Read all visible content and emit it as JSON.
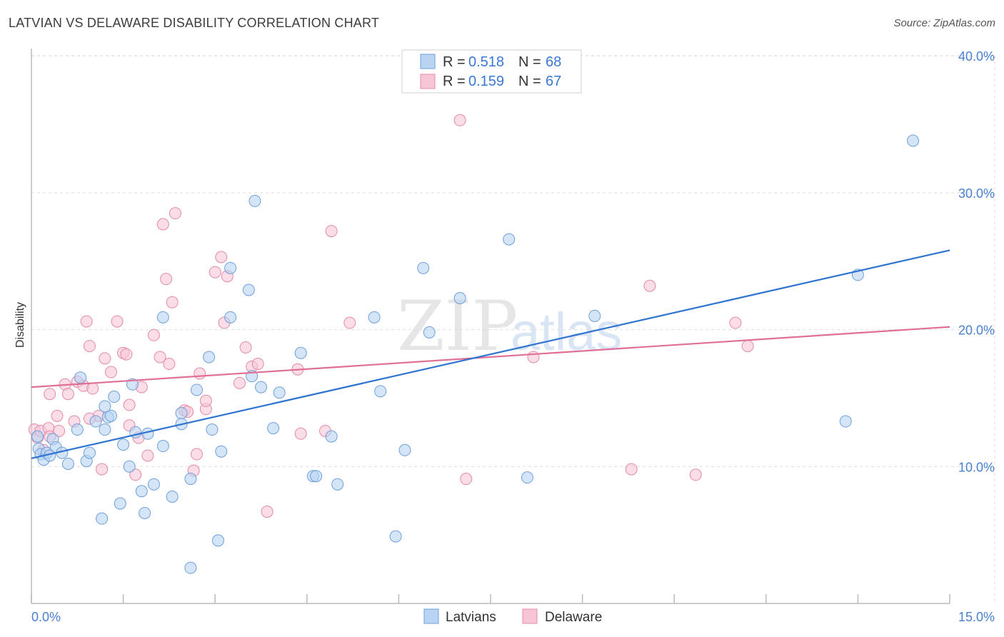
{
  "header": {
    "title": "LATVIAN VS DELAWARE DISABILITY CORRELATION CHART",
    "source": "Source: ZipAtlas.com"
  },
  "watermark": {
    "zip": "ZIP",
    "atlas": "atlas"
  },
  "legend": {
    "r_label": "R =",
    "n_label": "N =",
    "series": [
      {
        "r": "0.518",
        "n": "68"
      },
      {
        "r": "0.159",
        "n": "67"
      }
    ]
  },
  "colors": {
    "blue_fill": "#b9d3f3",
    "blue_stroke": "#6e9fdc",
    "blue_line": "#2f74d0",
    "pink_fill": "#f7c6d6",
    "pink_stroke": "#e48aa8",
    "pink_line": "#e07096",
    "tick_text": "#4a7fcf",
    "grid": "#dddddd"
  },
  "chart_data": {
    "type": "scatter",
    "title": "LATVIAN VS DELAWARE DISABILITY CORRELATION CHART",
    "xlabel": "",
    "ylabel": "Disability",
    "xlim": [
      0,
      15
    ],
    "ylim": [
      0,
      41
    ],
    "x_tick_labels": [
      "0.0%",
      "15.0%"
    ],
    "y_ticks": [
      10,
      20,
      30,
      40
    ],
    "y_tick_labels": [
      "10.0%",
      "20.0%",
      "30.0%",
      "40.0%"
    ],
    "legend_position": "top-center",
    "series": [
      {
        "name": "Latvians",
        "r": 0.518,
        "n": 68,
        "trend": {
          "x": [
            0,
            15
          ],
          "y": [
            10.6,
            25.8
          ]
        },
        "points": [
          [
            0.1,
            12.2
          ],
          [
            0.12,
            11.3
          ],
          [
            0.15,
            10.9
          ],
          [
            0.2,
            10.5
          ],
          [
            0.25,
            11.0
          ],
          [
            0.35,
            12.0
          ],
          [
            0.4,
            11.4
          ],
          [
            0.5,
            11.0
          ],
          [
            0.6,
            10.2
          ],
          [
            0.75,
            12.7
          ],
          [
            0.8,
            16.5
          ],
          [
            0.9,
            10.4
          ],
          [
            0.95,
            11.0
          ],
          [
            1.05,
            13.3
          ],
          [
            1.15,
            6.2
          ],
          [
            1.2,
            12.7
          ],
          [
            1.25,
            13.6
          ],
          [
            1.3,
            13.7
          ],
          [
            1.35,
            15.1
          ],
          [
            1.45,
            7.3
          ],
          [
            1.5,
            11.6
          ],
          [
            1.6,
            10.0
          ],
          [
            1.65,
            16.0
          ],
          [
            1.7,
            12.5
          ],
          [
            1.8,
            8.2
          ],
          [
            1.85,
            6.6
          ],
          [
            1.9,
            12.4
          ],
          [
            2.0,
            8.7
          ],
          [
            2.3,
            7.8
          ],
          [
            2.45,
            13.9
          ],
          [
            2.6,
            9.1
          ],
          [
            2.7,
            15.6
          ],
          [
            2.95,
            12.7
          ],
          [
            3.1,
            11.1
          ],
          [
            3.25,
            20.9
          ],
          [
            3.25,
            24.5
          ],
          [
            3.65,
            29.4
          ],
          [
            3.6,
            16.6
          ],
          [
            3.75,
            15.8
          ],
          [
            3.95,
            12.8
          ],
          [
            4.05,
            15.4
          ],
          [
            4.4,
            18.3
          ],
          [
            4.6,
            9.3
          ],
          [
            4.65,
            9.3
          ],
          [
            4.9,
            12.2
          ],
          [
            5.0,
            8.7
          ],
          [
            5.6,
            20.9
          ],
          [
            5.7,
            15.5
          ],
          [
            5.95,
            4.9
          ],
          [
            6.1,
            11.2
          ],
          [
            6.4,
            24.5
          ],
          [
            6.5,
            19.8
          ],
          [
            7.0,
            22.3
          ],
          [
            7.8,
            26.6
          ],
          [
            8.1,
            9.2
          ],
          [
            9.2,
            21.0
          ],
          [
            13.3,
            13.3
          ],
          [
            13.5,
            24.0
          ],
          [
            14.4,
            33.8
          ],
          [
            0.3,
            10.8
          ],
          [
            2.15,
            20.9
          ],
          [
            2.45,
            13.1
          ],
          [
            2.6,
            2.6
          ],
          [
            3.05,
            4.6
          ],
          [
            3.55,
            22.9
          ],
          [
            2.15,
            11.5
          ],
          [
            1.2,
            14.4
          ],
          [
            2.9,
            18.0
          ]
        ]
      },
      {
        "name": "Delaware",
        "r": 0.159,
        "n": 67,
        "trend": {
          "x": [
            0,
            15
          ],
          "y": [
            15.8,
            20.2
          ]
        },
        "points": [
          [
            0.05,
            12.7
          ],
          [
            0.1,
            12.1
          ],
          [
            0.15,
            12.6
          ],
          [
            0.2,
            11.2
          ],
          [
            0.28,
            12.8
          ],
          [
            0.3,
            15.3
          ],
          [
            0.42,
            13.7
          ],
          [
            0.45,
            12.6
          ],
          [
            0.55,
            16.0
          ],
          [
            0.6,
            15.3
          ],
          [
            0.7,
            13.3
          ],
          [
            0.75,
            16.2
          ],
          [
            0.85,
            15.9
          ],
          [
            0.9,
            20.6
          ],
          [
            0.95,
            18.8
          ],
          [
            1.0,
            15.7
          ],
          [
            1.1,
            13.7
          ],
          [
            1.15,
            9.8
          ],
          [
            1.2,
            17.9
          ],
          [
            1.3,
            16.9
          ],
          [
            1.4,
            20.6
          ],
          [
            1.5,
            18.3
          ],
          [
            1.55,
            18.2
          ],
          [
            1.6,
            14.5
          ],
          [
            1.7,
            9.4
          ],
          [
            1.75,
            12.1
          ],
          [
            1.8,
            15.8
          ],
          [
            1.9,
            10.8
          ],
          [
            2.0,
            19.6
          ],
          [
            2.1,
            18.0
          ],
          [
            2.15,
            27.7
          ],
          [
            2.2,
            23.7
          ],
          [
            2.25,
            17.5
          ],
          [
            2.3,
            22.0
          ],
          [
            2.35,
            28.5
          ],
          [
            2.5,
            14.1
          ],
          [
            2.55,
            14.0
          ],
          [
            2.65,
            9.7
          ],
          [
            2.7,
            10.9
          ],
          [
            2.75,
            16.8
          ],
          [
            2.85,
            14.2
          ],
          [
            3.0,
            24.2
          ],
          [
            3.1,
            25.3
          ],
          [
            3.15,
            20.5
          ],
          [
            3.2,
            23.9
          ],
          [
            3.4,
            16.1
          ],
          [
            3.5,
            18.7
          ],
          [
            3.6,
            17.3
          ],
          [
            3.7,
            17.5
          ],
          [
            3.85,
            6.7
          ],
          [
            4.35,
            17.1
          ],
          [
            4.4,
            12.4
          ],
          [
            4.8,
            12.6
          ],
          [
            4.9,
            27.2
          ],
          [
            5.2,
            20.5
          ],
          [
            7.0,
            35.3
          ],
          [
            7.1,
            9.1
          ],
          [
            8.2,
            18.0
          ],
          [
            9.8,
            9.8
          ],
          [
            10.1,
            23.2
          ],
          [
            10.85,
            9.4
          ],
          [
            11.5,
            20.5
          ],
          [
            11.7,
            18.8
          ],
          [
            0.3,
            12.2
          ],
          [
            1.6,
            13.0
          ],
          [
            2.85,
            14.8
          ],
          [
            0.95,
            13.5
          ]
        ]
      }
    ]
  }
}
